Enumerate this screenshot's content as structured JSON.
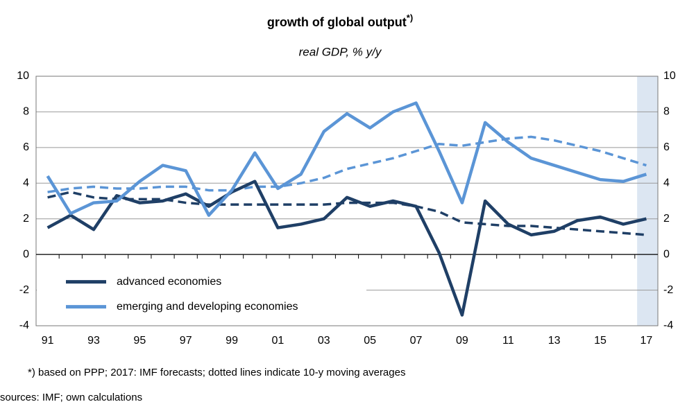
{
  "chart_data": {
    "type": "line",
    "title": "growth of global output",
    "title_mark": "*)",
    "subtitle": "real GDP, % y/y",
    "footnote": "*) based on PPP;  2017: IMF forecasts;  dotted lines indicate 10-y moving averages",
    "source": "sources: IMF; own calculations",
    "categories": [
      "91",
      null,
      "93",
      null,
      "95",
      null,
      "97",
      null,
      "99",
      null,
      "01",
      null,
      "03",
      null,
      "05",
      null,
      "07",
      null,
      "09",
      null,
      "11",
      null,
      "13",
      null,
      "15",
      null,
      "17"
    ],
    "series": [
      {
        "name": "advanced economies",
        "color": "#1f3f66",
        "dashed": false,
        "values": [
          1.5,
          2.2,
          1.4,
          3.3,
          2.9,
          3.0,
          3.4,
          2.7,
          3.5,
          4.1,
          1.5,
          1.7,
          2.0,
          3.2,
          2.7,
          3.0,
          2.7,
          0.1,
          -3.4,
          3.0,
          1.7,
          1.1,
          1.3,
          1.9,
          2.1,
          1.7,
          2.0
        ]
      },
      {
        "name": "emerging and developing economies",
        "color": "#5b95d6",
        "dashed": false,
        "values": [
          4.4,
          2.3,
          2.9,
          3.0,
          4.1,
          5.0,
          4.7,
          2.2,
          3.6,
          5.7,
          3.7,
          4.5,
          6.9,
          7.9,
          7.1,
          8.0,
          8.5,
          5.8,
          2.9,
          7.4,
          6.3,
          5.4,
          5.0,
          4.6,
          4.2,
          4.1,
          4.5
        ]
      },
      {
        "color": "#1f3f66",
        "dashed": true,
        "values": [
          3.2,
          3.5,
          3.2,
          3.1,
          3.1,
          3.1,
          2.9,
          2.8,
          2.8,
          2.8,
          2.8,
          2.8,
          2.8,
          2.9,
          2.9,
          2.9,
          2.7,
          2.4,
          1.8,
          1.7,
          1.6,
          1.6,
          1.5,
          1.4,
          1.3,
          1.2,
          1.1
        ]
      },
      {
        "color": "#5b95d6",
        "dashed": true,
        "values": [
          3.5,
          3.7,
          3.8,
          3.7,
          3.7,
          3.8,
          3.8,
          3.6,
          3.6,
          3.8,
          3.8,
          4.0,
          4.3,
          4.8,
          5.1,
          5.4,
          5.8,
          6.2,
          6.1,
          6.3,
          6.5,
          6.6,
          6.4,
          6.1,
          5.8,
          5.4,
          5.0
        ]
      }
    ],
    "ylim": [
      -4,
      10
    ],
    "yticks": [
      -4,
      -2,
      0,
      2,
      4,
      6,
      8,
      10
    ],
    "y2lim": [
      -4,
      10
    ],
    "y2ticks": [
      -4,
      -2,
      0,
      2,
      4,
      6,
      8,
      10
    ],
    "grid": true,
    "legend": "lower left"
  }
}
